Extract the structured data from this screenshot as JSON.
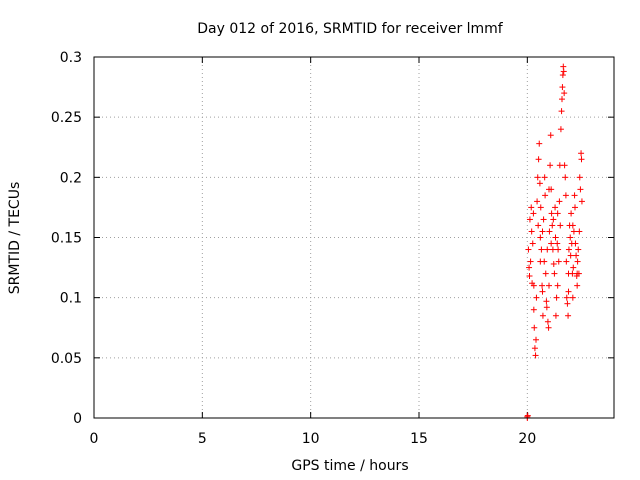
{
  "chart_data": {
    "type": "scatter",
    "title": "Day 012 of 2016, SRMTID for receiver lmmf",
    "xlabel": "GPS time / hours",
    "ylabel": "SRMTID / TECUs",
    "xlim": [
      0,
      24
    ],
    "ylim": [
      0,
      0.3
    ],
    "xticks": [
      0,
      5,
      10,
      15,
      20
    ],
    "xtick_labels": [
      "0",
      "5",
      "10",
      "15",
      "20"
    ],
    "yticks": [
      0,
      0.05,
      0.1,
      0.15,
      0.2,
      0.25,
      0.3
    ],
    "ytick_labels": [
      "0",
      "0.05",
      "0.1",
      "0.15",
      "0.2",
      "0.25",
      "0.3"
    ],
    "grid": true,
    "marker": "+",
    "color": "#ff0000",
    "series": [
      {
        "name": "SRMTID",
        "points": [
          [
            20.0,
            0.0
          ],
          [
            20.02,
            0.002
          ],
          [
            20.0,
            0.001
          ],
          [
            20.05,
            0.14
          ],
          [
            20.08,
            0.125
          ],
          [
            20.1,
            0.118
          ],
          [
            20.12,
            0.165
          ],
          [
            20.15,
            0.13
          ],
          [
            20.18,
            0.175
          ],
          [
            20.2,
            0.155
          ],
          [
            20.22,
            0.112
          ],
          [
            20.25,
            0.145
          ],
          [
            20.28,
            0.17
          ],
          [
            20.3,
            0.09
          ],
          [
            20.32,
            0.075
          ],
          [
            20.35,
            0.058
          ],
          [
            20.38,
            0.052
          ],
          [
            20.4,
            0.065
          ],
          [
            20.42,
            0.1
          ],
          [
            20.45,
            0.18
          ],
          [
            20.48,
            0.2
          ],
          [
            20.5,
            0.16
          ],
          [
            20.52,
            0.215
          ],
          [
            20.55,
            0.228
          ],
          [
            20.58,
            0.195
          ],
          [
            20.6,
            0.15
          ],
          [
            20.62,
            0.175
          ],
          [
            20.65,
            0.14
          ],
          [
            20.68,
            0.11
          ],
          [
            20.7,
            0.105
          ],
          [
            20.72,
            0.085
          ],
          [
            20.75,
            0.165
          ],
          [
            20.78,
            0.13
          ],
          [
            20.8,
            0.2
          ],
          [
            20.82,
            0.185
          ],
          [
            20.85,
            0.12
          ],
          [
            20.88,
            0.097
          ],
          [
            20.9,
            0.092
          ],
          [
            20.92,
            0.14
          ],
          [
            20.95,
            0.08
          ],
          [
            20.98,
            0.075
          ],
          [
            21.0,
            0.11
          ],
          [
            21.02,
            0.155
          ],
          [
            21.05,
            0.21
          ],
          [
            21.08,
            0.235
          ],
          [
            21.1,
            0.19
          ],
          [
            21.12,
            0.17
          ],
          [
            21.15,
            0.16
          ],
          [
            21.18,
            0.14
          ],
          [
            21.2,
            0.165
          ],
          [
            21.22,
            0.128
          ],
          [
            21.25,
            0.12
          ],
          [
            21.28,
            0.175
          ],
          [
            21.3,
            0.15
          ],
          [
            21.32,
            0.085
          ],
          [
            21.35,
            0.1
          ],
          [
            21.38,
            0.145
          ],
          [
            21.4,
            0.11
          ],
          [
            21.42,
            0.14
          ],
          [
            21.45,
            0.13
          ],
          [
            21.48,
            0.18
          ],
          [
            21.5,
            0.21
          ],
          [
            21.52,
            0.16
          ],
          [
            21.55,
            0.24
          ],
          [
            21.58,
            0.255
          ],
          [
            21.6,
            0.265
          ],
          [
            21.62,
            0.275
          ],
          [
            21.64,
            0.285
          ],
          [
            21.66,
            0.292
          ],
          [
            21.68,
            0.288
          ],
          [
            21.7,
            0.27
          ],
          [
            21.72,
            0.21
          ],
          [
            21.75,
            0.2
          ],
          [
            21.78,
            0.185
          ],
          [
            21.8,
            0.13
          ],
          [
            21.82,
            0.1
          ],
          [
            21.85,
            0.095
          ],
          [
            21.88,
            0.085
          ],
          [
            21.9,
            0.12
          ],
          [
            21.92,
            0.14
          ],
          [
            21.95,
            0.16
          ],
          [
            21.98,
            0.15
          ],
          [
            22.0,
            0.135
          ],
          [
            22.02,
            0.17
          ],
          [
            22.05,
            0.145
          ],
          [
            22.08,
            0.12
          ],
          [
            22.1,
            0.1
          ],
          [
            22.12,
            0.125
          ],
          [
            22.15,
            0.155
          ],
          [
            22.18,
            0.185
          ],
          [
            22.2,
            0.175
          ],
          [
            22.22,
            0.145
          ],
          [
            22.25,
            0.135
          ],
          [
            22.28,
            0.118
          ],
          [
            22.3,
            0.11
          ],
          [
            22.32,
            0.13
          ],
          [
            22.35,
            0.14
          ],
          [
            22.38,
            0.12
          ],
          [
            22.4,
            0.155
          ],
          [
            22.42,
            0.2
          ],
          [
            22.45,
            0.19
          ],
          [
            22.48,
            0.22
          ],
          [
            22.5,
            0.215
          ],
          [
            22.52,
            0.18
          ],
          [
            22.1,
            0.16
          ],
          [
            21.0,
            0.19
          ],
          [
            20.6,
            0.13
          ],
          [
            20.3,
            0.11
          ],
          [
            21.4,
            0.17
          ],
          [
            21.9,
            0.105
          ],
          [
            22.3,
            0.12
          ],
          [
            20.7,
            0.155
          ],
          [
            21.1,
            0.145
          ]
        ]
      }
    ]
  }
}
